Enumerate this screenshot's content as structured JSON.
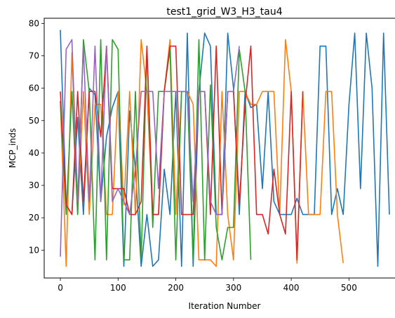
{
  "chart_data": {
    "type": "line",
    "title": "test1_grid_W3_H3_tau4",
    "xlabel": "Iteration Number",
    "ylabel": "MCP_inds",
    "xlim": [
      -28,
      598
    ],
    "ylim": [
      1.4,
      81.6
    ],
    "xticks": [
      0,
      100,
      200,
      300,
      400,
      500
    ],
    "yticks": [
      10,
      20,
      30,
      40,
      50,
      60,
      70,
      80
    ],
    "grid": false,
    "series": [
      {
        "color": "#1f77b4",
        "x": [
          0,
          10,
          20,
          30,
          40,
          50,
          60,
          70,
          80,
          90,
          100,
          110,
          120,
          130,
          140,
          150,
          160,
          170,
          180,
          190,
          200,
          210,
          220,
          230,
          240,
          250,
          260,
          270,
          280,
          290,
          300,
          310,
          320,
          330,
          340,
          350,
          360,
          370,
          380,
          390,
          400,
          410,
          420,
          430,
          440,
          450,
          460,
          470,
          480,
          490,
          500,
          510,
          520,
          530,
          540,
          550,
          560,
          570
        ],
        "y": [
          78,
          24,
          21,
          51,
          21,
          60,
          58,
          25,
          45,
          54,
          59,
          5,
          53,
          35,
          5,
          21,
          5,
          7,
          35,
          21,
          59,
          5,
          77,
          5,
          59,
          77,
          73,
          21,
          21,
          77,
          60,
          21,
          59,
          54,
          55,
          29,
          59,
          25,
          21,
          21,
          21,
          26,
          21,
          21,
          21,
          73,
          73,
          21,
          29,
          21,
          55,
          77,
          29,
          77,
          60,
          5,
          77,
          21
        ]
      },
      {
        "color": "#ff7f0e",
        "x": [
          0,
          10,
          20,
          30,
          40,
          50,
          60,
          70,
          80,
          90,
          100,
          110,
          120,
          130,
          140,
          150,
          160,
          170,
          180,
          190,
          200,
          210,
          220,
          230,
          240,
          250,
          260,
          270,
          280,
          290,
          300,
          310,
          320,
          330,
          340,
          350,
          360,
          370,
          380,
          390,
          400,
          410,
          420,
          430,
          440,
          450,
          460,
          470,
          480,
          490
        ],
        "y": [
          56,
          5,
          71,
          21,
          59,
          21,
          55,
          55,
          21,
          21,
          59,
          24,
          59,
          21,
          75,
          59,
          21,
          21,
          59,
          75,
          21,
          59,
          59,
          55,
          7,
          7,
          7,
          5,
          59,
          21,
          7,
          59,
          59,
          55,
          55,
          59,
          59,
          59,
          21,
          75,
          59,
          6,
          59,
          21,
          21,
          21,
          59,
          59,
          21,
          6
        ]
      },
      {
        "color": "#2ca02c",
        "x": [
          0,
          10,
          20,
          30,
          40,
          50,
          60,
          70,
          80,
          90,
          100,
          110,
          120,
          130,
          140,
          150,
          160,
          170,
          180,
          190,
          200,
          210,
          220,
          230,
          240,
          250,
          260,
          270,
          280,
          290,
          300,
          310,
          320,
          330
        ],
        "y": [
          56,
          21,
          59,
          21,
          75,
          59,
          7,
          75,
          7,
          75,
          72,
          7,
          7,
          59,
          7,
          72,
          17,
          59,
          59,
          72,
          7,
          59,
          59,
          7,
          75,
          7,
          61,
          17,
          7,
          17,
          17,
          72,
          59,
          7
        ]
      },
      {
        "color": "#d62728",
        "x": [
          0,
          10,
          20,
          30,
          40,
          50,
          60,
          70,
          80,
          90,
          100,
          110,
          120,
          130,
          140,
          150,
          160,
          170,
          180,
          190,
          200,
          210,
          220,
          230,
          240,
          250,
          260,
          270,
          280,
          290,
          300,
          310,
          320,
          330,
          340,
          350,
          360,
          370,
          380,
          390,
          400,
          410,
          420
        ],
        "y": [
          59,
          24,
          21,
          59,
          25,
          59,
          59,
          45,
          73,
          29,
          29,
          29,
          21,
          21,
          25,
          73,
          21,
          21,
          59,
          73,
          73,
          21,
          21,
          21,
          59,
          59,
          21,
          73,
          21,
          59,
          59,
          24,
          55,
          73,
          21,
          21,
          15,
          35,
          21,
          15,
          59,
          7,
          59
        ]
      },
      {
        "color": "#9467bd",
        "x": [
          0,
          10,
          20,
          30,
          40,
          50,
          60,
          70,
          80,
          90,
          100,
          110,
          120,
          130,
          140,
          150,
          160,
          170,
          180,
          190,
          200,
          210,
          220,
          230,
          240,
          250,
          260,
          270,
          280,
          290,
          300,
          310
        ],
        "y": [
          8,
          72,
          75,
          25,
          73,
          25,
          73,
          25,
          73,
          25,
          29,
          25,
          21,
          35,
          59,
          59,
          59,
          29,
          59,
          59,
          59,
          59,
          59,
          25,
          59,
          59,
          25,
          21,
          21,
          59,
          59,
          73
        ]
      }
    ]
  }
}
